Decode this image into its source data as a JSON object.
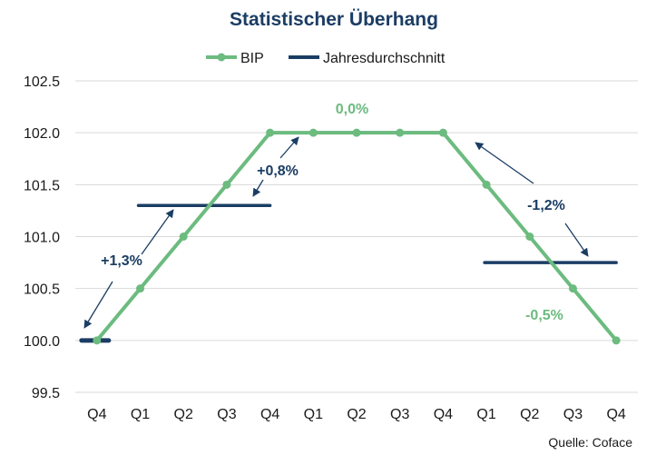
{
  "chart_data": {
    "type": "line",
    "title": "Statistischer Überhang",
    "xlabel": "",
    "ylabel": "",
    "ylim": [
      99.5,
      102.5
    ],
    "yticks": [
      99.5,
      100.0,
      100.5,
      101.0,
      101.5,
      102.0,
      102.5
    ],
    "ytick_labels": [
      "99.5",
      "100.0",
      "100.5",
      "101.0",
      "101.5",
      "102.0",
      "102.5"
    ],
    "grid": true,
    "legend_position": "top-center",
    "categories": [
      "Q4",
      "Q1",
      "Q2",
      "Q3",
      "Q4",
      "Q1",
      "Q2",
      "Q3",
      "Q4",
      "Q1",
      "Q2",
      "Q3",
      "Q4"
    ],
    "series": [
      {
        "name": "BIP",
        "color": "#6cbb7f",
        "marker": "circle",
        "values": [
          100.0,
          100.5,
          101.0,
          101.5,
          102.0,
          102.0,
          102.0,
          102.0,
          102.0,
          101.5,
          101.0,
          100.5,
          100.0
        ]
      },
      {
        "name": "Jahresdurchschnitt",
        "color": "#1b3d64",
        "segments": [
          {
            "from_index": 0,
            "to_index": 0,
            "value": 100.0
          },
          {
            "from_index": 1,
            "to_index": 4,
            "value": 101.3
          },
          {
            "from_index": 5,
            "to_index": 8,
            "value": 102.0
          },
          {
            "from_index": 9,
            "to_index": 12,
            "value": 100.75
          }
        ]
      }
    ],
    "annotations": [
      {
        "text": "+1,3%",
        "style": "dark",
        "type": "double-arrow",
        "between": "year average 1 and 2"
      },
      {
        "text": "+0,8%",
        "style": "dark",
        "type": "double-arrow",
        "between": "year average 2 and 3"
      },
      {
        "text": "0,0%",
        "style": "green",
        "type": "label",
        "describes": "overhang year 3"
      },
      {
        "text": "-1,2%",
        "style": "dark",
        "type": "double-arrow",
        "between": "year average 3 and 4"
      },
      {
        "text": "-0,5%",
        "style": "green",
        "type": "label",
        "describes": "overhang year 4"
      }
    ],
    "source": "Quelle: Coface"
  },
  "colors": {
    "bip": "#6cbb7f",
    "average": "#1b3d64",
    "grid": "#d9d9d9",
    "title": "#1b3d64"
  }
}
